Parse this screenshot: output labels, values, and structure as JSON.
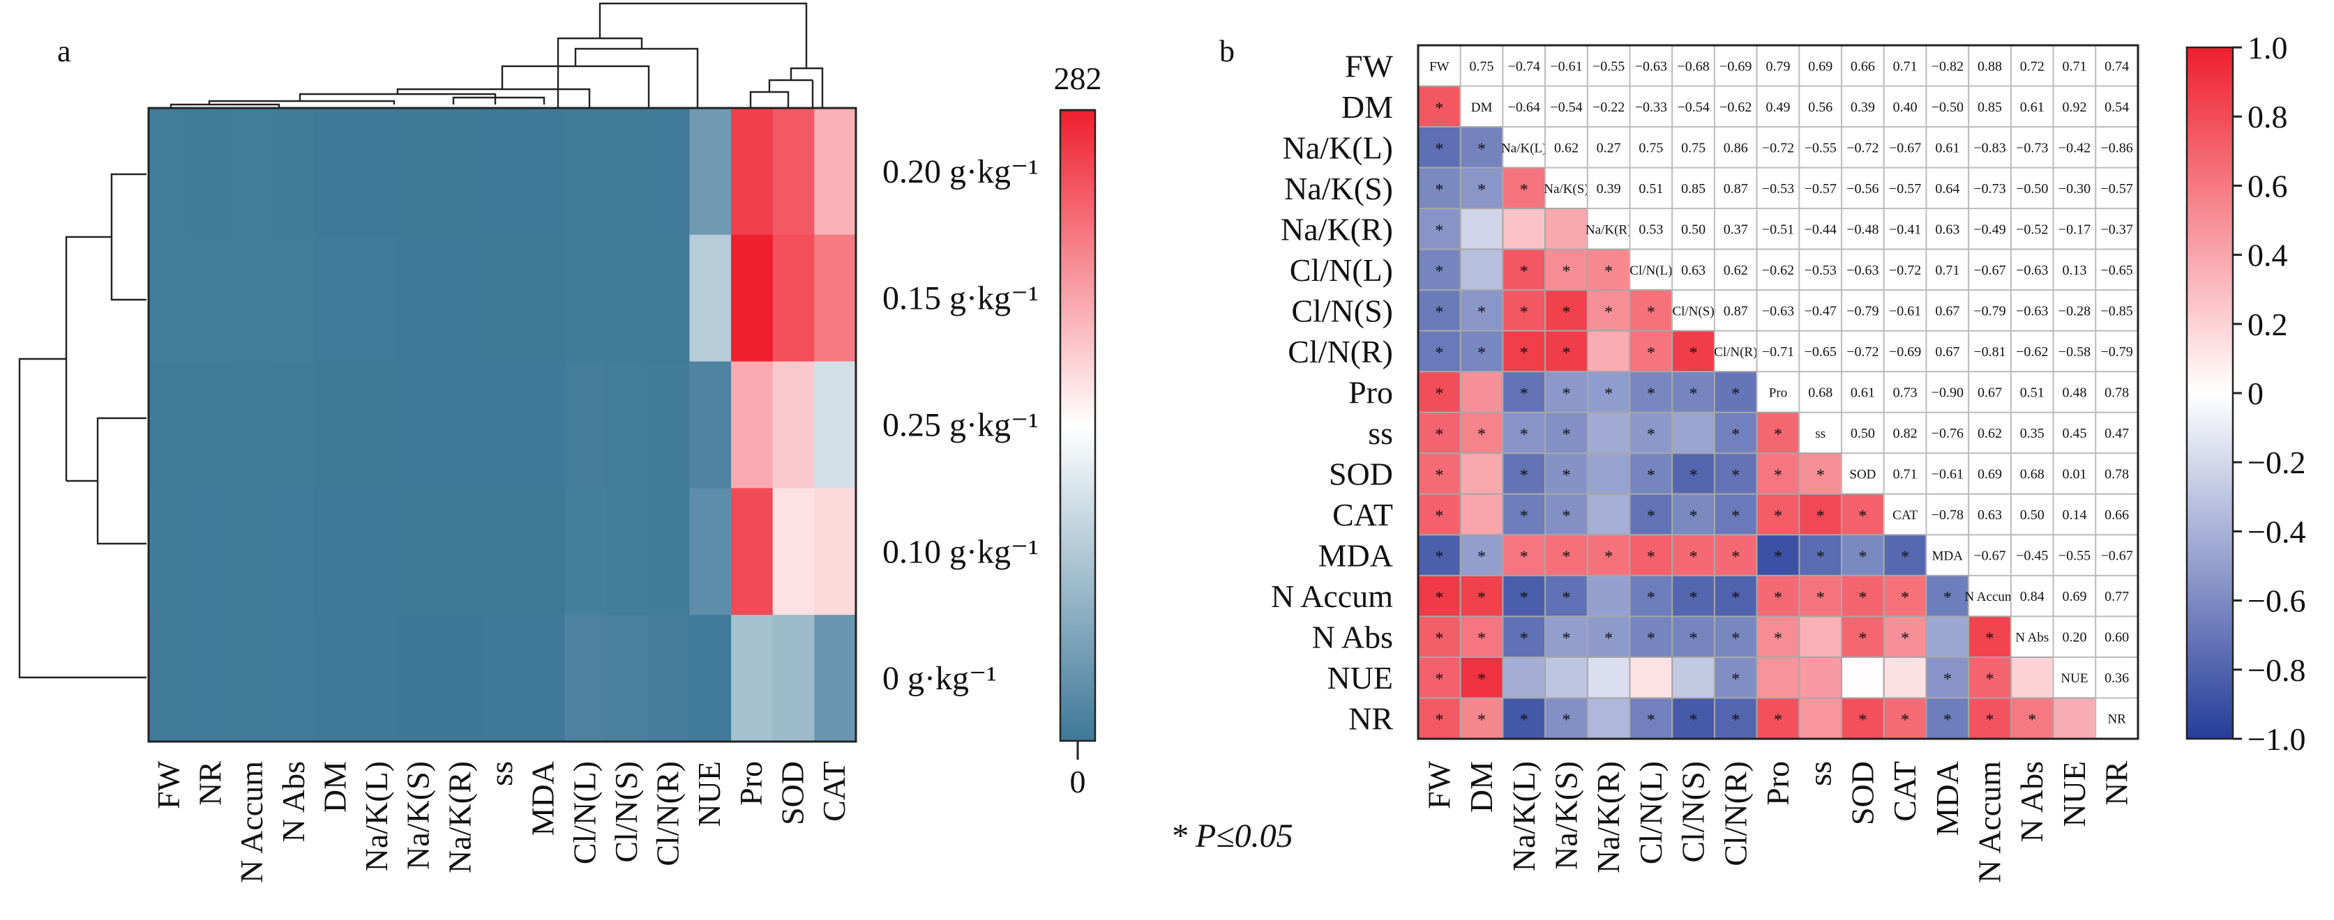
{
  "panels": {
    "a": "a",
    "b": "b"
  },
  "significance_note": "* P≤0.05",
  "colors": {
    "red": "#ef1f2e",
    "white": "#ffffff",
    "teal": "#3e7898",
    "blue": "#263d9a"
  },
  "chart_data": [
    {
      "type": "heatmap",
      "panel": "a",
      "columns": [
        "FW",
        "NR",
        "N Accum",
        "N Abs",
        "DM",
        "Na/K(L)",
        "Na/K(S)",
        "Na/K(R)",
        "ss",
        "MDA",
        "Cl/N(L)",
        "Cl/N(S)",
        "Cl/N(R)",
        "NUE",
        "Pro",
        "SOD",
        "CAT"
      ],
      "rows": [
        "0.20 g·kg⁻¹",
        "0.15 g·kg⁻¹",
        "0.25 g·kg⁻¹",
        "0.10 g·kg⁻¹",
        "0  g·kg⁻¹"
      ],
      "values": [
        [
          14,
          13,
          15,
          13,
          6,
          6,
          5,
          5,
          4,
          6,
          12,
          10,
          8,
          60,
          262,
          245,
          190
        ],
        [
          15,
          14,
          16,
          14,
          7,
          7,
          6,
          6,
          5,
          5,
          12,
          10,
          9,
          105,
          282,
          252,
          225
        ],
        [
          10,
          9,
          10,
          9,
          5,
          5,
          4,
          4,
          4,
          4,
          17,
          14,
          12,
          30,
          195,
          175,
          120
        ],
        [
          12,
          11,
          12,
          11,
          6,
          6,
          5,
          5,
          5,
          5,
          20,
          16,
          12,
          45,
          255,
          160,
          165
        ],
        [
          9,
          8,
          9,
          8,
          4,
          4,
          3,
          3,
          4,
          4,
          27,
          24,
          19,
          8,
          95,
          90,
          55
        ]
      ],
      "colorbar": {
        "max_label": "282",
        "min_label": "0",
        "range": [
          0,
          282
        ]
      }
    },
    {
      "type": "heatmap",
      "panel": "b",
      "variables": [
        "FW",
        "DM",
        "Na/K(L)",
        "Na/K(S)",
        "Na/K(R)",
        "Cl/N(L)",
        "Cl/N(S)",
        "Cl/N(R)",
        "Pro",
        "ss",
        "SOD",
        "CAT",
        "MDA",
        "N Accum",
        "N Abs",
        "NUE",
        "NR"
      ],
      "diagonal_labels": [
        "FW",
        "DM",
        "Na/K(L)",
        "Na/K(S)",
        "Na/K(R)",
        "Cl/N(L)",
        "Cl/N(S)",
        "Cl/N(R)",
        "Pro",
        "ss",
        "SOD",
        "CAT",
        "MDA",
        "N Accum",
        "N Abs",
        "NUE",
        "NR"
      ],
      "upper_values": [
        [
          "0.75",
          "−0.74",
          "−0.61",
          "−0.55",
          "−0.63",
          "−0.68",
          "−0.69",
          "0.79",
          "0.69",
          "0.66",
          "0.71",
          "−0.82",
          "0.88",
          "0.72",
          "0.71",
          "0.74"
        ],
        [
          "−0.64",
          "−0.54",
          "−0.22",
          "−0.33",
          "−0.54",
          "−0.62",
          "0.49",
          "0.56",
          "0.39",
          "0.40",
          "−0.50",
          "0.85",
          "0.61",
          "0.92",
          "0.54"
        ],
        [
          "0.62",
          "0.27",
          "0.75",
          "0.75",
          "0.86",
          "−0.72",
          "−0.55",
          "−0.72",
          "−0.67",
          "0.61",
          "−0.83",
          "−0.73",
          "−0.42",
          "−0.86"
        ],
        [
          "0.39",
          "0.51",
          "0.85",
          "0.87",
          "−0.53",
          "−0.57",
          "−0.56",
          "−0.57",
          "0.64",
          "−0.73",
          "−0.50",
          "−0.30",
          "−0.57"
        ],
        [
          "0.53",
          "0.50",
          "0.37",
          "−0.51",
          "−0.44",
          "−0.48",
          "−0.41",
          "0.63",
          "−0.49",
          "−0.52",
          "−0.17",
          "−0.37"
        ],
        [
          "0.63",
          "0.62",
          "−0.62",
          "−0.53",
          "−0.63",
          "−0.72",
          "0.71",
          "−0.67",
          "−0.63",
          "0.13",
          "−0.65"
        ],
        [
          "0.87",
          "−0.63",
          "−0.47",
          "−0.79",
          "−0.61",
          "0.67",
          "−0.79",
          "−0.63",
          "−0.28",
          "−0.85"
        ],
        [
          "−0.71",
          "−0.65",
          "−0.72",
          "−0.69",
          "0.67",
          "−0.81",
          "−0.62",
          "−0.58",
          "−0.79"
        ],
        [
          "0.68",
          "0.61",
          "0.73",
          "−0.90",
          "0.67",
          "0.51",
          "0.48",
          "0.78"
        ],
        [
          "0.50",
          "0.82",
          "−0.76",
          "0.62",
          "0.35",
          "0.45",
          "0.47"
        ],
        [
          "0.71",
          "−0.61",
          "0.69",
          "0.68",
          "0.01",
          "0.78"
        ],
        [
          "−0.78",
          "0.63",
          "0.50",
          "0.14",
          "0.66"
        ],
        [
          "−0.67",
          "−0.45",
          "−0.55",
          "−0.67"
        ],
        [
          "0.84",
          "0.69",
          "0.77"
        ],
        [
          "0.20",
          "0.60"
        ],
        [
          "0.36"
        ],
        []
      ],
      "significance_marker": "*",
      "colorbar": {
        "ticks": [
          "1.0",
          "0.8",
          "0.6",
          "0.4",
          "0.2",
          "0",
          "−0.2",
          "−0.4",
          "−0.6",
          "−0.8",
          "−1.0"
        ],
        "range": [
          -1,
          1
        ]
      }
    }
  ]
}
